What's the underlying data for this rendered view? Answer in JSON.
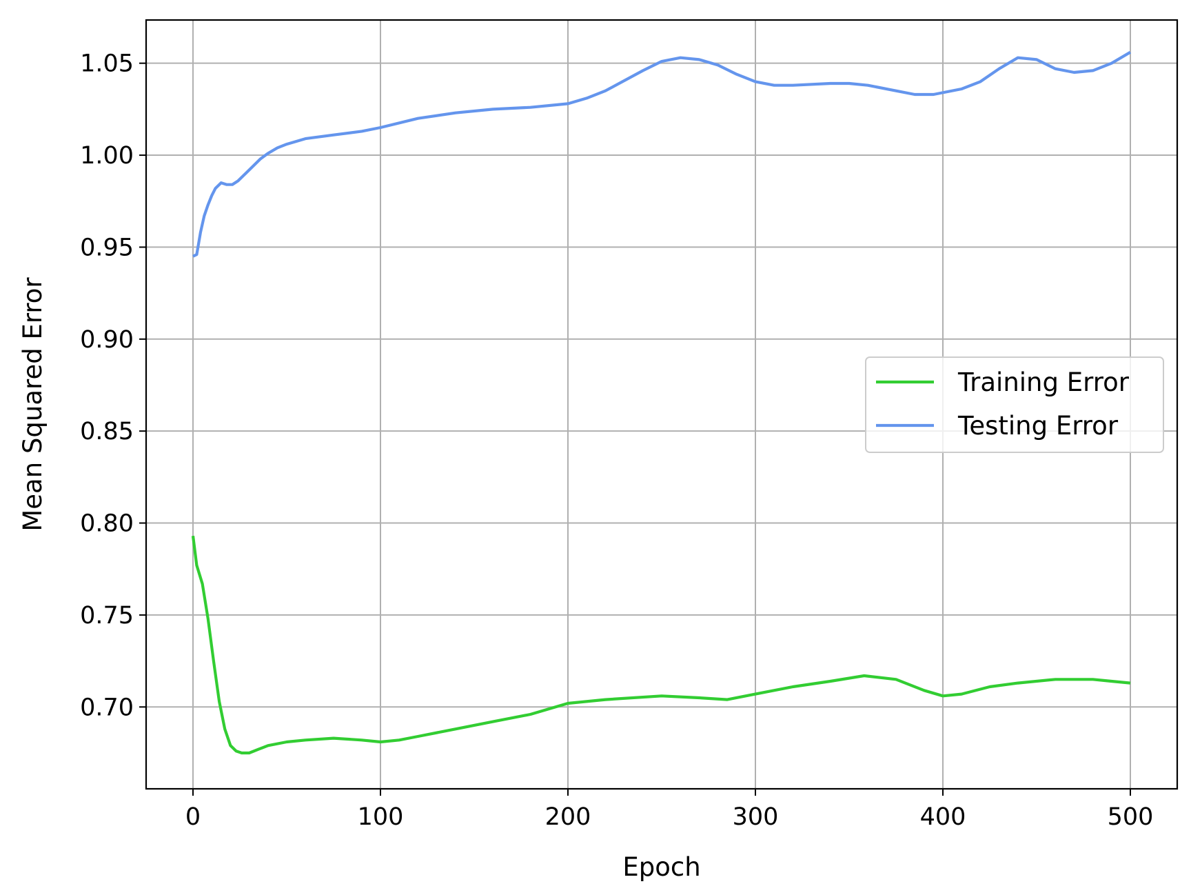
{
  "chart_data": {
    "type": "line",
    "title": "",
    "xlabel": "Epoch",
    "ylabel": "Mean Squared Error",
    "xlim": [
      -25,
      525
    ],
    "ylim": [
      0.6555,
      1.0735
    ],
    "xticks": [
      0,
      100,
      200,
      300,
      400,
      500
    ],
    "xtick_labels": [
      "0",
      "100",
      "200",
      "300",
      "400",
      "500"
    ],
    "yticks": [
      0.7,
      0.75,
      0.8,
      0.85,
      0.9,
      0.95,
      1.0,
      1.05
    ],
    "ytick_labels": [
      "0.70",
      "0.75",
      "0.80",
      "0.85",
      "0.90",
      "0.95",
      "1.00",
      "1.05"
    ],
    "grid": true,
    "legend_position": "center-right",
    "series": [
      {
        "name": "Training Error",
        "color": "#32cd32",
        "x": [
          0,
          2,
          5,
          8,
          11,
          14,
          17,
          20,
          23,
          26,
          30,
          35,
          40,
          50,
          60,
          75,
          90,
          100,
          110,
          120,
          140,
          160,
          180,
          200,
          220,
          250,
          270,
          285,
          300,
          320,
          340,
          358,
          375,
          390,
          400,
          410,
          425,
          440,
          460,
          480,
          490,
          500
        ],
        "y": [
          0.793,
          0.777,
          0.767,
          0.748,
          0.725,
          0.703,
          0.688,
          0.679,
          0.676,
          0.675,
          0.675,
          0.677,
          0.679,
          0.681,
          0.682,
          0.683,
          0.682,
          0.681,
          0.682,
          0.684,
          0.688,
          0.692,
          0.696,
          0.702,
          0.704,
          0.706,
          0.705,
          0.704,
          0.707,
          0.711,
          0.714,
          0.717,
          0.715,
          0.709,
          0.706,
          0.707,
          0.711,
          0.713,
          0.715,
          0.715,
          0.714,
          0.713
        ]
      },
      {
        "name": "Testing Error",
        "color": "#6495ed",
        "x": [
          0,
          2,
          4,
          6,
          8,
          10,
          12,
          15,
          18,
          21,
          24,
          28,
          32,
          36,
          40,
          45,
          50,
          60,
          75,
          90,
          100,
          120,
          140,
          160,
          180,
          200,
          210,
          220,
          240,
          250,
          260,
          270,
          280,
          290,
          300,
          310,
          320,
          340,
          350,
          360,
          375,
          385,
          395,
          410,
          420,
          430,
          440,
          450,
          460,
          470,
          480,
          490,
          500
        ],
        "y": [
          0.945,
          0.946,
          0.958,
          0.967,
          0.973,
          0.978,
          0.982,
          0.985,
          0.984,
          0.984,
          0.986,
          0.99,
          0.994,
          0.998,
          1.001,
          1.004,
          1.006,
          1.009,
          1.011,
          1.013,
          1.015,
          1.02,
          1.023,
          1.025,
          1.026,
          1.028,
          1.031,
          1.035,
          1.046,
          1.051,
          1.053,
          1.052,
          1.049,
          1.044,
          1.04,
          1.038,
          1.038,
          1.039,
          1.039,
          1.038,
          1.035,
          1.033,
          1.033,
          1.036,
          1.04,
          1.047,
          1.053,
          1.052,
          1.047,
          1.045,
          1.046,
          1.05,
          1.056
        ]
      }
    ]
  }
}
